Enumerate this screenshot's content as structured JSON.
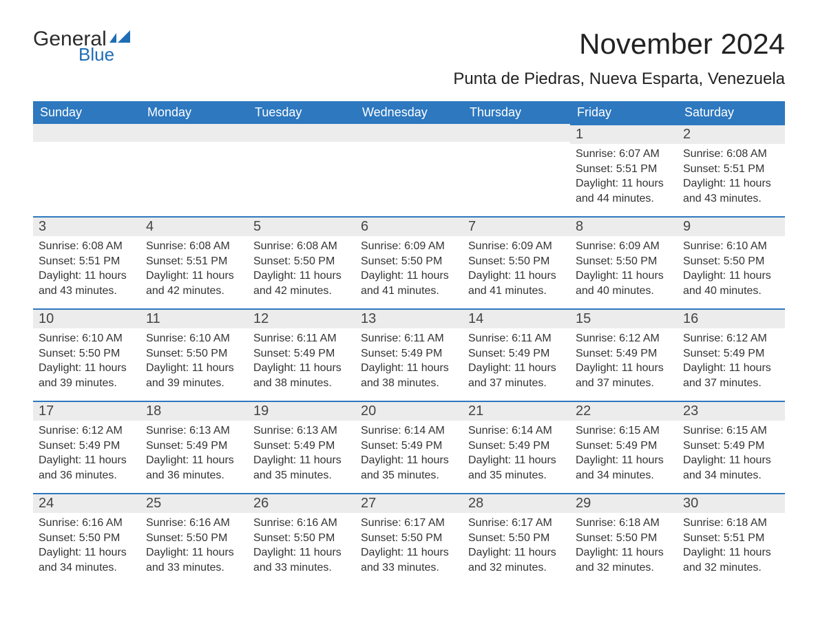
{
  "logo": {
    "word1": "General",
    "word2": "Blue",
    "flag_color": "#1f6db5"
  },
  "title": "November 2024",
  "subtitle": "Punta de Piedras, Nueva Esparta, Venezuela",
  "colors": {
    "header_bg": "#2d78bf",
    "header_text": "#ffffff",
    "daybar_bg": "#ececec",
    "daybar_border": "#2d78bf",
    "body_text": "#333333",
    "title_text": "#222222"
  },
  "weekdays": [
    "Sunday",
    "Monday",
    "Tuesday",
    "Wednesday",
    "Thursday",
    "Friday",
    "Saturday"
  ],
  "weeks": [
    [
      null,
      null,
      null,
      null,
      null,
      {
        "n": "1",
        "sr": "6:07 AM",
        "ss": "5:51 PM",
        "dl": "11 hours and 44 minutes."
      },
      {
        "n": "2",
        "sr": "6:08 AM",
        "ss": "5:51 PM",
        "dl": "11 hours and 43 minutes."
      }
    ],
    [
      {
        "n": "3",
        "sr": "6:08 AM",
        "ss": "5:51 PM",
        "dl": "11 hours and 43 minutes."
      },
      {
        "n": "4",
        "sr": "6:08 AM",
        "ss": "5:51 PM",
        "dl": "11 hours and 42 minutes."
      },
      {
        "n": "5",
        "sr": "6:08 AM",
        "ss": "5:50 PM",
        "dl": "11 hours and 42 minutes."
      },
      {
        "n": "6",
        "sr": "6:09 AM",
        "ss": "5:50 PM",
        "dl": "11 hours and 41 minutes."
      },
      {
        "n": "7",
        "sr": "6:09 AM",
        "ss": "5:50 PM",
        "dl": "11 hours and 41 minutes."
      },
      {
        "n": "8",
        "sr": "6:09 AM",
        "ss": "5:50 PM",
        "dl": "11 hours and 40 minutes."
      },
      {
        "n": "9",
        "sr": "6:10 AM",
        "ss": "5:50 PM",
        "dl": "11 hours and 40 minutes."
      }
    ],
    [
      {
        "n": "10",
        "sr": "6:10 AM",
        "ss": "5:50 PM",
        "dl": "11 hours and 39 minutes."
      },
      {
        "n": "11",
        "sr": "6:10 AM",
        "ss": "5:50 PM",
        "dl": "11 hours and 39 minutes."
      },
      {
        "n": "12",
        "sr": "6:11 AM",
        "ss": "5:49 PM",
        "dl": "11 hours and 38 minutes."
      },
      {
        "n": "13",
        "sr": "6:11 AM",
        "ss": "5:49 PM",
        "dl": "11 hours and 38 minutes."
      },
      {
        "n": "14",
        "sr": "6:11 AM",
        "ss": "5:49 PM",
        "dl": "11 hours and 37 minutes."
      },
      {
        "n": "15",
        "sr": "6:12 AM",
        "ss": "5:49 PM",
        "dl": "11 hours and 37 minutes."
      },
      {
        "n": "16",
        "sr": "6:12 AM",
        "ss": "5:49 PM",
        "dl": "11 hours and 37 minutes."
      }
    ],
    [
      {
        "n": "17",
        "sr": "6:12 AM",
        "ss": "5:49 PM",
        "dl": "11 hours and 36 minutes."
      },
      {
        "n": "18",
        "sr": "6:13 AM",
        "ss": "5:49 PM",
        "dl": "11 hours and 36 minutes."
      },
      {
        "n": "19",
        "sr": "6:13 AM",
        "ss": "5:49 PM",
        "dl": "11 hours and 35 minutes."
      },
      {
        "n": "20",
        "sr": "6:14 AM",
        "ss": "5:49 PM",
        "dl": "11 hours and 35 minutes."
      },
      {
        "n": "21",
        "sr": "6:14 AM",
        "ss": "5:49 PM",
        "dl": "11 hours and 35 minutes."
      },
      {
        "n": "22",
        "sr": "6:15 AM",
        "ss": "5:49 PM",
        "dl": "11 hours and 34 minutes."
      },
      {
        "n": "23",
        "sr": "6:15 AM",
        "ss": "5:49 PM",
        "dl": "11 hours and 34 minutes."
      }
    ],
    [
      {
        "n": "24",
        "sr": "6:16 AM",
        "ss": "5:50 PM",
        "dl": "11 hours and 34 minutes."
      },
      {
        "n": "25",
        "sr": "6:16 AM",
        "ss": "5:50 PM",
        "dl": "11 hours and 33 minutes."
      },
      {
        "n": "26",
        "sr": "6:16 AM",
        "ss": "5:50 PM",
        "dl": "11 hours and 33 minutes."
      },
      {
        "n": "27",
        "sr": "6:17 AM",
        "ss": "5:50 PM",
        "dl": "11 hours and 33 minutes."
      },
      {
        "n": "28",
        "sr": "6:17 AM",
        "ss": "5:50 PM",
        "dl": "11 hours and 32 minutes."
      },
      {
        "n": "29",
        "sr": "6:18 AM",
        "ss": "5:50 PM",
        "dl": "11 hours and 32 minutes."
      },
      {
        "n": "30",
        "sr": "6:18 AM",
        "ss": "5:51 PM",
        "dl": "11 hours and 32 minutes."
      }
    ]
  ],
  "labels": {
    "sunrise": "Sunrise:",
    "sunset": "Sunset:",
    "daylight": "Daylight:"
  }
}
